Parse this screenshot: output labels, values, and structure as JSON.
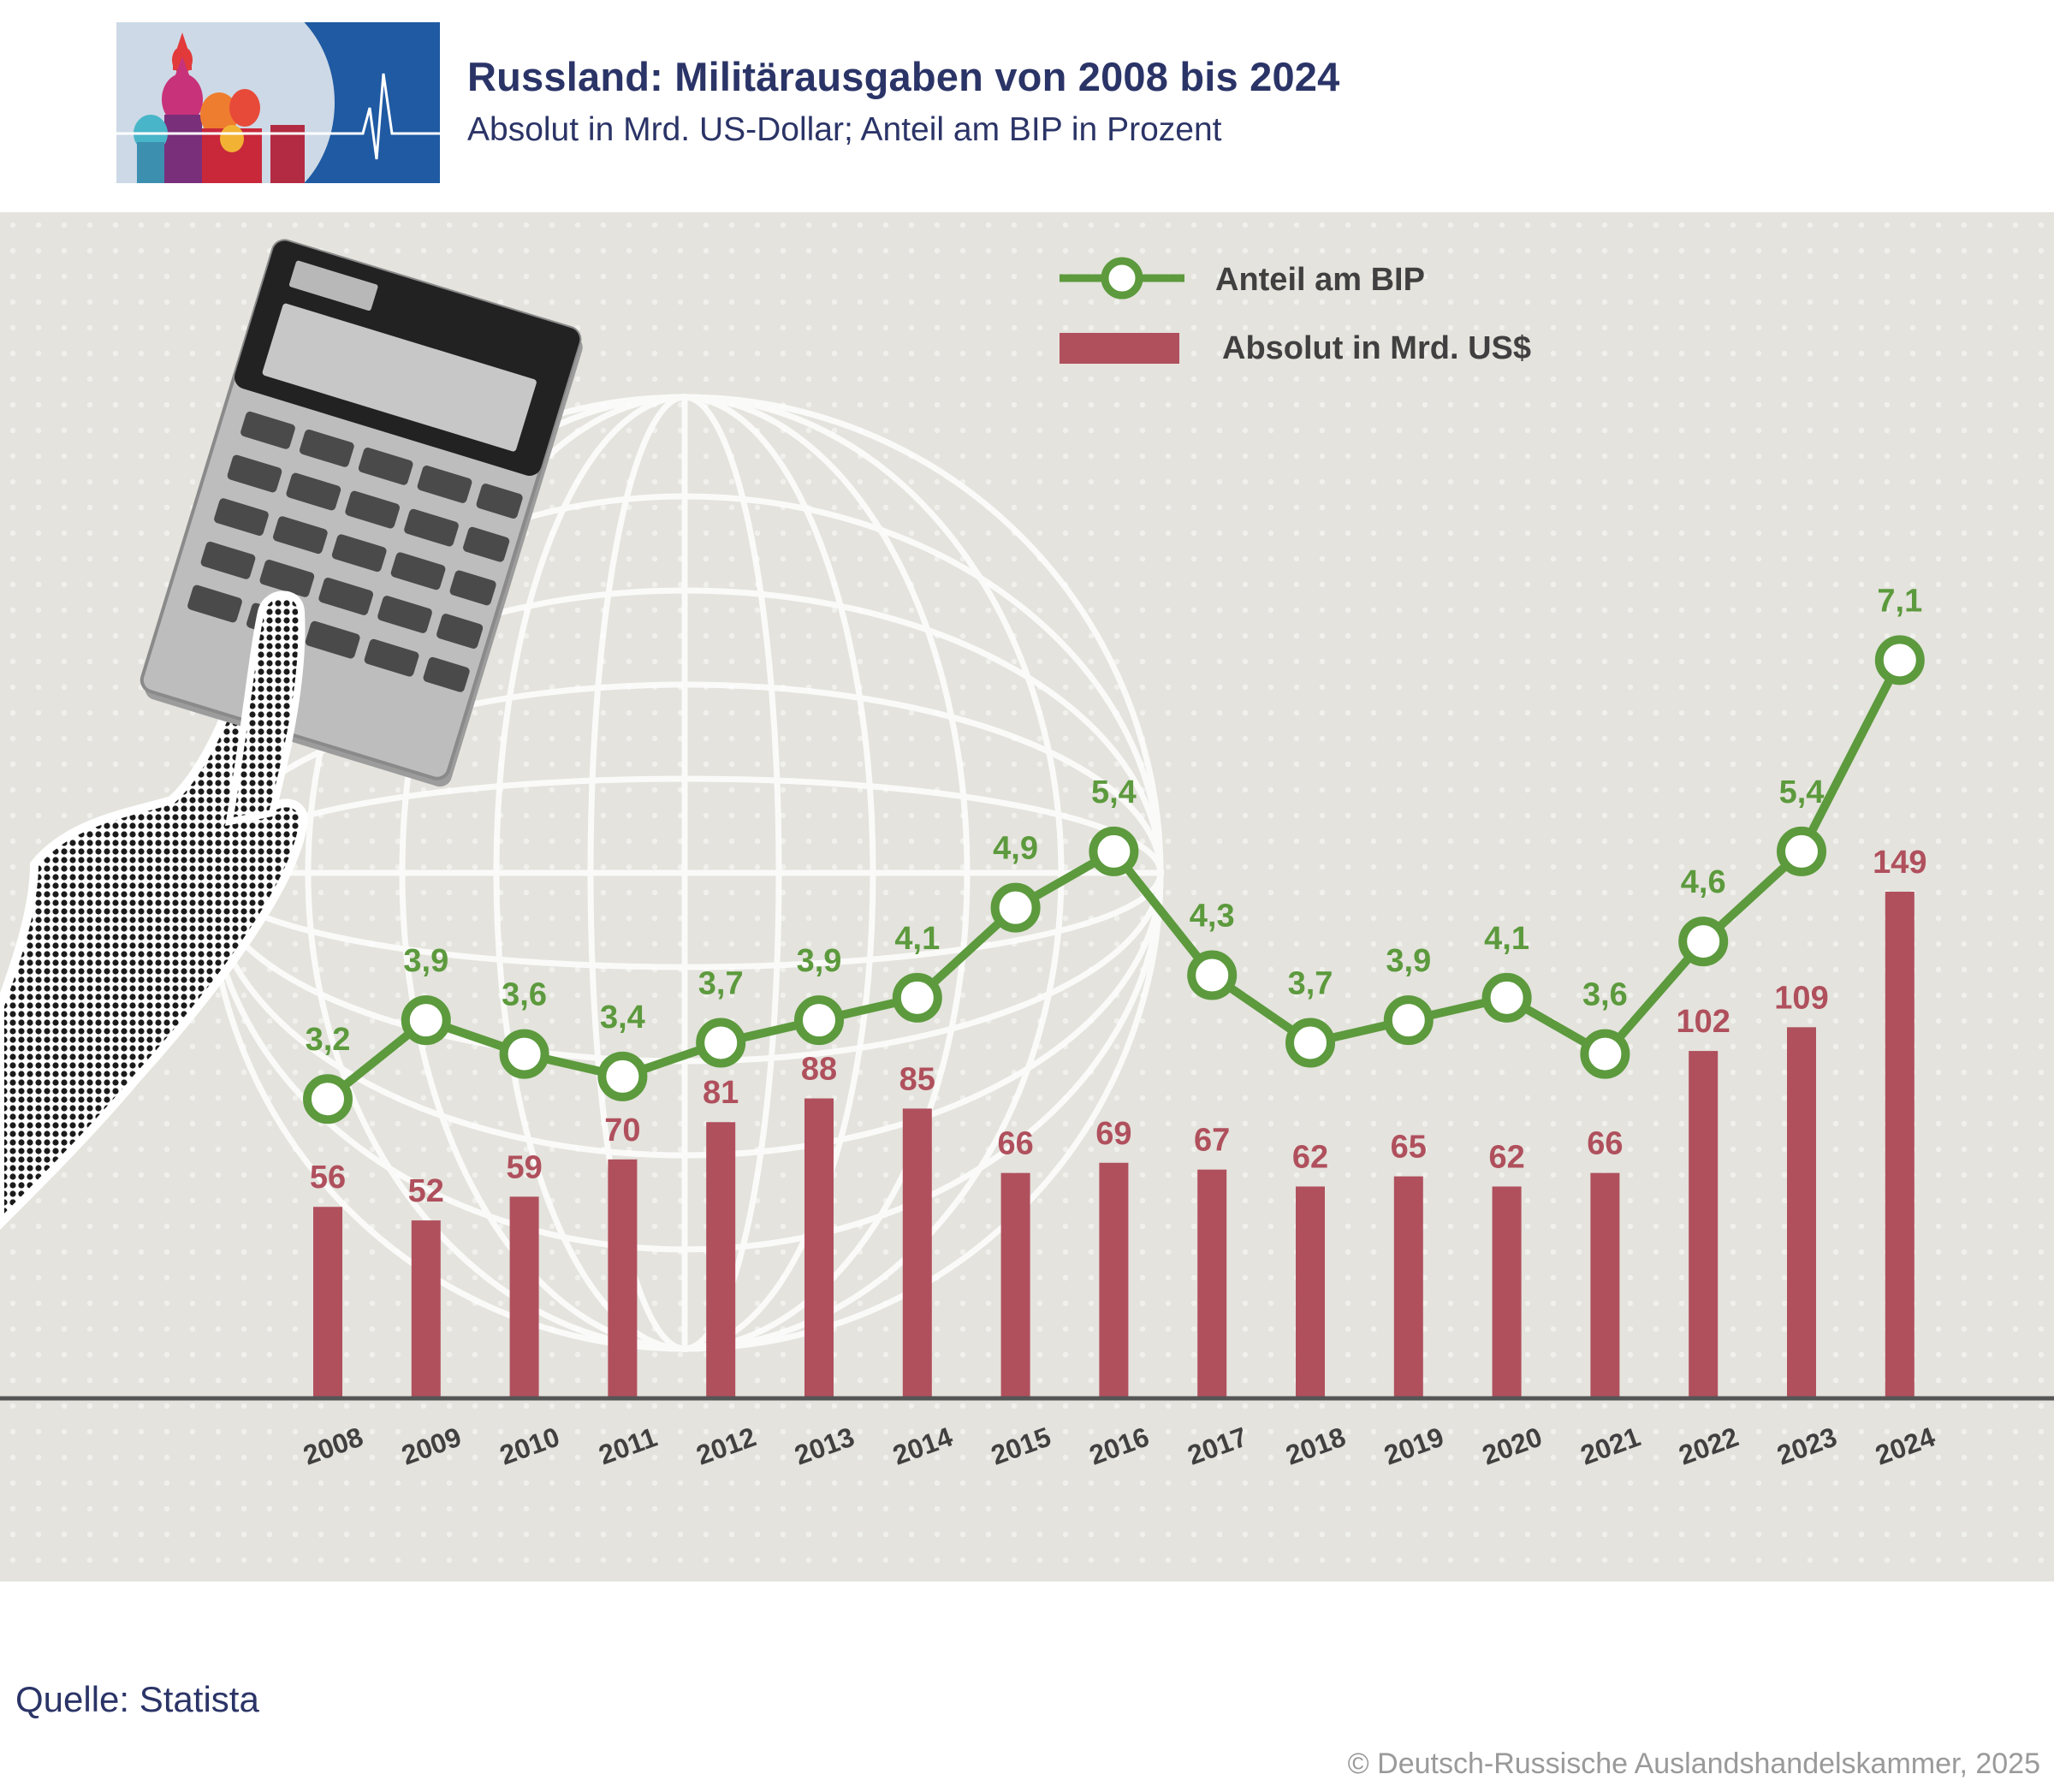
{
  "header": {
    "title": "Russland: Militärausgaben von 2008 bis 2024",
    "subtitle": "Absolut in Mrd. US-Dollar; Anteil am BIP in Prozent"
  },
  "footer": {
    "source": "Quelle: Statista",
    "copyright": "© Deutsch-Russische Auslandshandelskammer, 2025"
  },
  "colors": {
    "bar": "#b0505d",
    "line": "#5c9a3d",
    "title": "#2b3467",
    "axis": "#505050",
    "panel": "#e4e3dd"
  },
  "icons": [
    "kremlin-logo-icon",
    "calculator-icon",
    "pointing-hand-icon",
    "globe-icon"
  ],
  "chart_data": {
    "type": "bar",
    "categories": [
      "2008",
      "2009",
      "2010",
      "2011",
      "2012",
      "2013",
      "2014",
      "2015",
      "2016",
      "2017",
      "2018",
      "2019",
      "2020",
      "2021",
      "2022",
      "2023",
      "2024"
    ],
    "series": [
      {
        "name": "Absolut in Mrd. US$",
        "type": "bar",
        "values": [
          56,
          52,
          59,
          70,
          81,
          88,
          85,
          66,
          69,
          67,
          62,
          65,
          62,
          66,
          102,
          109,
          149
        ],
        "labels": [
          "56",
          "52",
          "59",
          "70",
          "81",
          "88",
          "85",
          "66",
          "69",
          "67",
          "62",
          "65",
          "62",
          "66",
          "102",
          "109",
          "149"
        ]
      },
      {
        "name": "Anteil am BIP",
        "type": "line",
        "values": [
          3.2,
          3.9,
          3.6,
          3.4,
          3.7,
          3.9,
          4.1,
          4.9,
          5.4,
          4.3,
          3.7,
          3.9,
          4.1,
          3.6,
          4.6,
          5.4,
          7.1
        ],
        "labels": [
          "3,2",
          "3,9",
          "3,6",
          "3,4",
          "3,7",
          "3,9",
          "4,1",
          "4,9",
          "5,4",
          "4,3",
          "3,7",
          "3,9",
          "4,1",
          "3,6",
          "4,6",
          "5,4",
          "7,1"
        ]
      }
    ],
    "legend": [
      "Anteil am BIP",
      "Absolut in Mrd. US$"
    ],
    "legend_position": "top-right",
    "xlabel": "",
    "ylabel": "",
    "ylim_bar": [
      0,
      200
    ],
    "ylim_line": [
      0,
      9.6
    ],
    "grid": false
  }
}
